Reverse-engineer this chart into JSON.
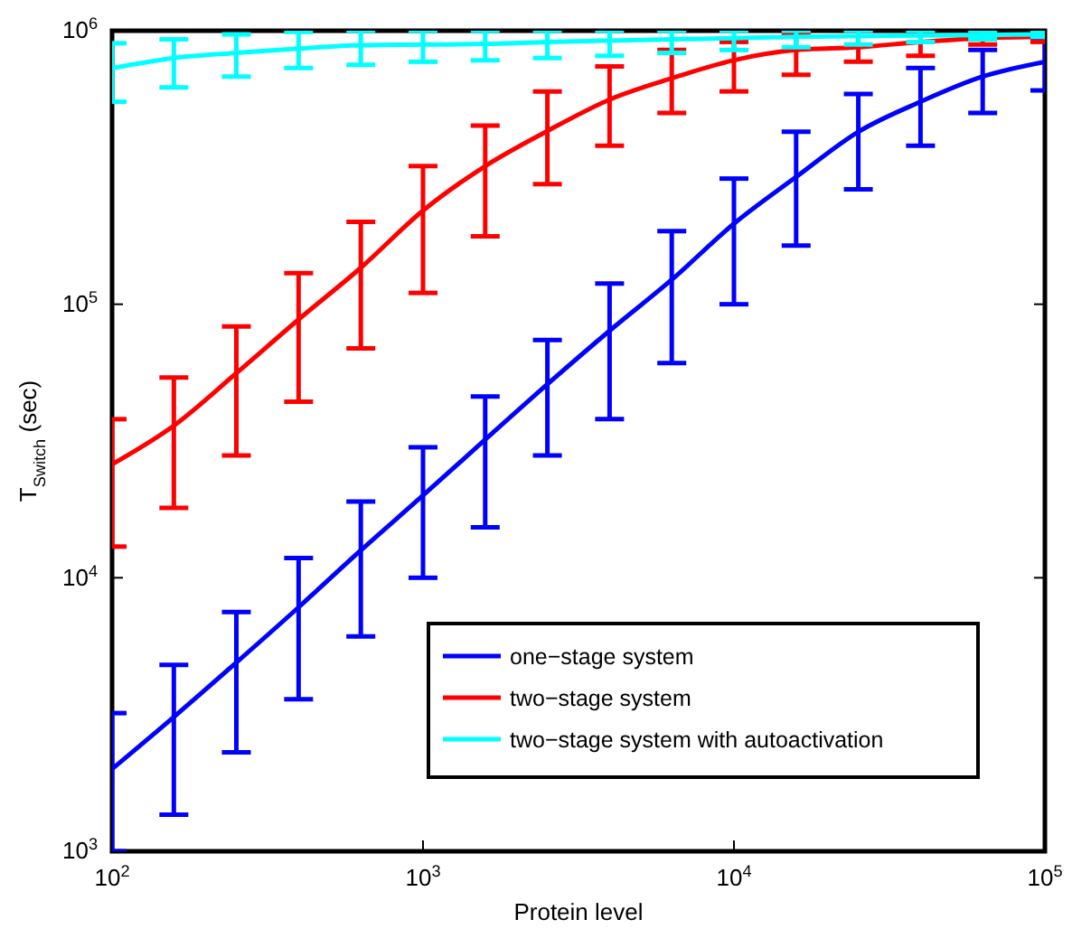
{
  "chart_data": {
    "type": "line",
    "xlabel": "Protein level",
    "ylabel": "T$_{Switch}$ (sec)",
    "log": "xy",
    "xlim": [
      100,
      100000
    ],
    "ylim": [
      1000,
      1000000
    ],
    "xticks": [
      {
        "value": 100,
        "label": "10$^{2}$"
      },
      {
        "value": 1000,
        "label": "10$^{3}$"
      },
      {
        "value": 10000,
        "label": "10$^{4}$"
      },
      {
        "value": 100000,
        "label": "10$^{5}$"
      }
    ],
    "yticks": [
      {
        "value": 1000,
        "label": "10$^{3}$"
      },
      {
        "value": 10000,
        "label": "10$^{4}$"
      },
      {
        "value": 100000,
        "label": "10$^{5}$"
      },
      {
        "value": 1000000,
        "label": "10$^{6}$"
      }
    ],
    "x": [
      100,
      158,
      251,
      398,
      631,
      1000,
      1585,
      2512,
      3981,
      6310,
      10000,
      15849,
      25119,
      39811,
      63096,
      100000
    ],
    "grid": false,
    "legend": "bottom right",
    "marker": "none",
    "line_style": "solid",
    "series": [
      {
        "name": "one−stage system",
        "color": "#0000ff",
        "values": [
          2000,
          3100,
          4900,
          7800,
          12600,
          20000,
          32000,
          51000,
          80000,
          123000,
          197000,
          292000,
          427000,
          550000,
          680000,
          770000
        ],
        "errors": [
          [
            1000,
            3200
          ],
          [
            1360,
            4800
          ],
          [
            2300,
            7500
          ],
          [
            3600,
            11800
          ],
          [
            6100,
            19000
          ],
          [
            10000,
            30000
          ],
          [
            15300,
            46000
          ],
          [
            28000,
            74000
          ],
          [
            38000,
            119000
          ],
          [
            61000,
            185000
          ],
          [
            100000,
            288000
          ],
          [
            164000,
            427000
          ],
          [
            263000,
            587000
          ],
          [
            380000,
            730000
          ],
          [
            500000,
            850000
          ],
          [
            605000,
            940000
          ]
        ]
      },
      {
        "name": "two−stage system",
        "color": "#ff0000",
        "values": [
          26000,
          36000,
          56000,
          88000,
          136000,
          220000,
          320000,
          430000,
          560000,
          670000,
          780000,
          850000,
          870000,
          910000,
          940000,
          950000
        ],
        "errors": [
          [
            13000,
            38000
          ],
          [
            18000,
            54000
          ],
          [
            28000,
            83000
          ],
          [
            44000,
            130000
          ],
          [
            69000,
            200000
          ],
          [
            110000,
            320000
          ],
          [
            177000,
            450000
          ],
          [
            275000,
            600000
          ],
          [
            380000,
            740000
          ],
          [
            500000,
            850000
          ],
          [
            600000,
            910000
          ],
          [
            690000,
            980000
          ],
          [
            770000,
            1000000
          ],
          [
            810000,
            1000000
          ],
          [
            890000,
            1000000
          ],
          [
            910000,
            1000000
          ]
        ]
      },
      {
        "name": "two−stage system with autoactivation",
        "color": "#00ffff",
        "values": [
          730000,
          795000,
          830000,
          860000,
          885000,
          890000,
          895000,
          910000,
          920000,
          930000,
          940000,
          950000,
          955000,
          960000,
          965000,
          970000
        ],
        "errors": [
          [
            550000,
            900000
          ],
          [
            620000,
            930000
          ],
          [
            680000,
            970000
          ],
          [
            730000,
            990000
          ],
          [
            750000,
            1000000
          ],
          [
            770000,
            1000000
          ],
          [
            780000,
            1000000
          ],
          [
            795000,
            1000000
          ],
          [
            810000,
            1000000
          ],
          [
            830000,
            1000000
          ],
          [
            850000,
            1000000
          ],
          [
            870000,
            1000000
          ],
          [
            890000,
            1000000
          ],
          [
            910000,
            1000000
          ],
          [
            930000,
            1000000
          ],
          [
            950000,
            1000000
          ]
        ]
      }
    ]
  }
}
